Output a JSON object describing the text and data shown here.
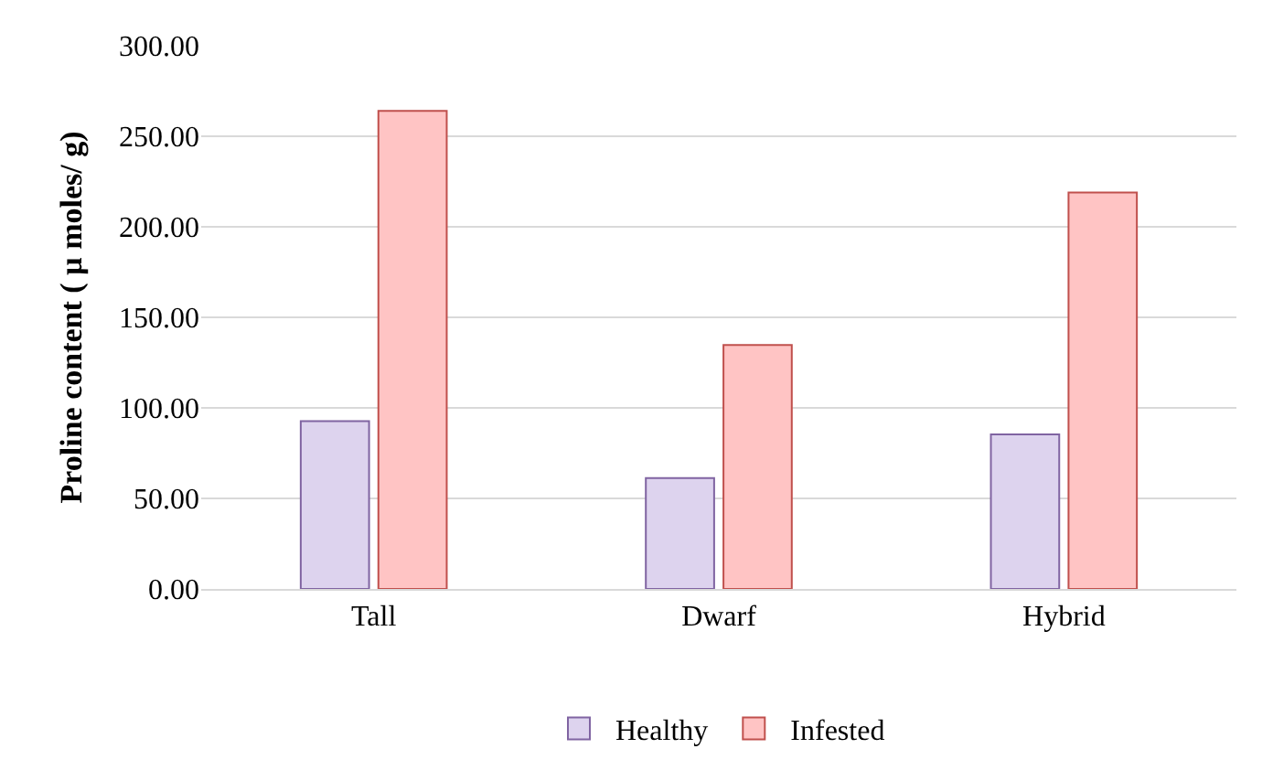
{
  "chart_data": {
    "type": "bar",
    "ylabel": "Proline content ( µ moles/ g)",
    "categories": [
      "Tall",
      "Dwarf",
      "Hybrid"
    ],
    "series": [
      {
        "name": "Healthy",
        "color": "#ddd3ee",
        "values": [
          92.7,
          61.2,
          85.4
        ]
      },
      {
        "name": "Infested",
        "color": "#ffc4c4",
        "values": [
          264,
          134.7,
          219
        ]
      }
    ],
    "ylim": [
      0,
      300
    ],
    "yticks": [
      {
        "value": 0,
        "label": "0.00"
      },
      {
        "value": 50,
        "label": "50.00"
      },
      {
        "value": 100,
        "label": "100.00"
      },
      {
        "value": 150,
        "label": "150.00"
      },
      {
        "value": 200,
        "label": "200.00"
      },
      {
        "value": 250,
        "label": "250.00"
      },
      {
        "value": 300,
        "label": "300.00"
      }
    ],
    "grid": "y",
    "legend": "bottom"
  }
}
